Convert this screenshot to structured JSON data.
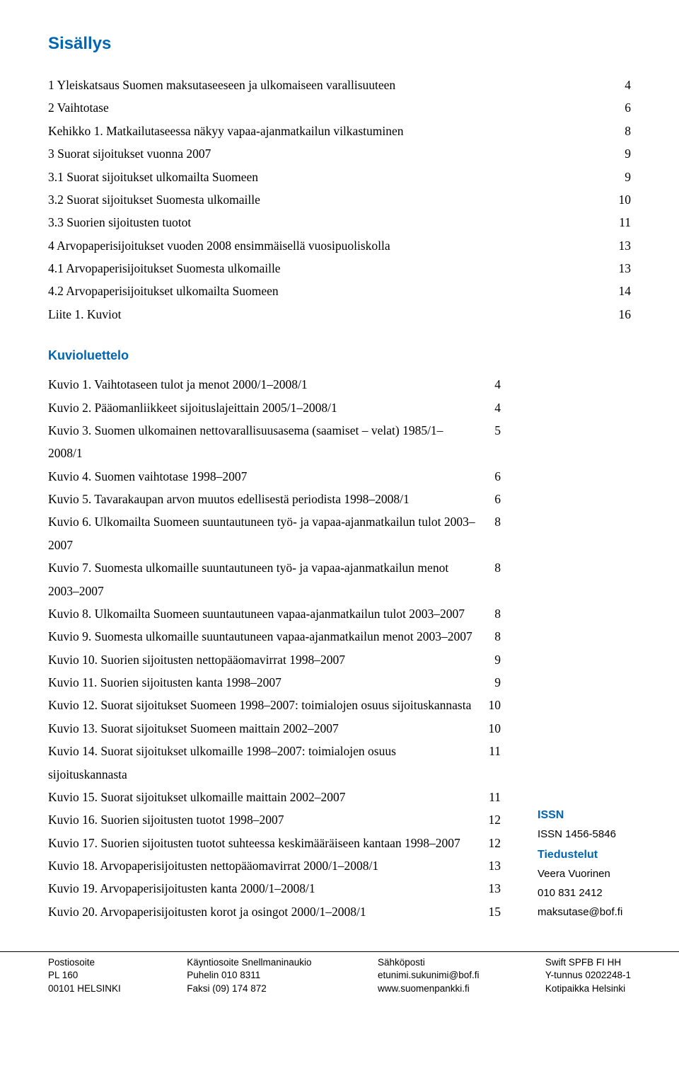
{
  "colors": {
    "heading": "#0066b3",
    "text": "#000000",
    "background": "#ffffff",
    "footer_border": "#000000"
  },
  "fonts": {
    "body_family": "Times New Roman",
    "heading_family": "Arial",
    "body_size_pt": 13,
    "heading_size_pt": 18,
    "subheading_size_pt": 14,
    "footer_size_pt": 10
  },
  "title": "Sisällys",
  "toc": [
    {
      "label": "1 Yleiskatsaus Suomen maksutaseeseen ja ulkomaiseen varallisuuteen",
      "page": "4",
      "indent": 1
    },
    {
      "label": "2 Vaihtotase",
      "page": "6",
      "indent": 1
    },
    {
      "label": "Kehikko 1. Matkailutaseessa näkyy vapaa-ajanmatkailun vilkastuminen",
      "page": "8",
      "indent": 1
    },
    {
      "label": "3 Suorat sijoitukset vuonna 2007",
      "page": "9",
      "indent": 1
    },
    {
      "label": "3.1 Suorat sijoitukset ulkomailta Suomeen",
      "page": "9",
      "indent": 2
    },
    {
      "label": "3.2 Suorat sijoitukset Suomesta ulkomaille",
      "page": "10",
      "indent": 2
    },
    {
      "label": "3.3 Suorien sijoitusten tuotot",
      "page": "11",
      "indent": 2
    },
    {
      "label": "4 Arvopaperisijoitukset vuoden 2008 ensimmäisellä vuosipuoliskolla",
      "page": "13",
      "indent": 1
    },
    {
      "label": "4.1 Arvopaperisijoitukset Suomesta ulkomaille",
      "page": "13",
      "indent": 2
    },
    {
      "label": "4.2 Arvopaperisijoitukset ulkomailta Suomeen",
      "page": "14",
      "indent": 2
    },
    {
      "label": "Liite 1. Kuviot",
      "page": "16",
      "indent": 1
    }
  ],
  "kuvioluettelo_title": "Kuvioluettelo",
  "kuviot": [
    {
      "label": "Kuvio 1. Vaihtotaseen tulot ja menot  2000/1–2008/1",
      "page": "4"
    },
    {
      "label": "Kuvio 2. Pääomanliikkeet sijoituslajeittain 2005/1–2008/1",
      "page": "4"
    },
    {
      "label": "Kuvio 3. Suomen ulkomainen nettovarallisuusasema (saamiset – velat) 1985/1–2008/1",
      "page": "5"
    },
    {
      "label": "Kuvio 4. Suomen vaihtotase 1998–2007",
      "page": "6"
    },
    {
      "label": "Kuvio 5. Tavarakaupan arvon muutos edellisestä periodista 1998–2008/1",
      "page": "6"
    },
    {
      "label": "Kuvio 6. Ulkomailta Suomeen suuntautuneen työ- ja vapaa-ajanmatkailun tulot 2003–2007",
      "page": "8"
    },
    {
      "label": "Kuvio 7. Suomesta ulkomaille suuntautuneen työ- ja vapaa-ajanmatkailun menot 2003–2007",
      "page": "8"
    },
    {
      "label": "Kuvio 8. Ulkomailta Suomeen suuntautuneen vapaa-ajanmatkailun tulot 2003–2007",
      "page": "8"
    },
    {
      "label": "Kuvio 9. Suomesta ulkomaille suuntautuneen vapaa-ajanmatkailun menot 2003–2007",
      "page": "8"
    },
    {
      "label": "Kuvio 10. Suorien sijoitusten nettopääomavirrat 1998–2007",
      "page": "9"
    },
    {
      "label": "Kuvio 11. Suorien sijoitusten kanta 1998–2007",
      "page": "9"
    },
    {
      "label": "Kuvio 12. Suorat sijoitukset Suomeen 1998–2007: toimialojen osuus sijoituskannasta",
      "page": "10"
    },
    {
      "label": "Kuvio 13. Suorat sijoitukset Suomeen maittain 2002–2007",
      "page": "10"
    },
    {
      "label": "Kuvio 14. Suorat sijoitukset ulkomaille 1998–2007: toimialojen osuus sijoituskannasta",
      "page": "11"
    },
    {
      "label": "Kuvio 15. Suorat sijoitukset ulkomaille maittain 2002–2007",
      "page": "11"
    },
    {
      "label": "Kuvio 16. Suorien sijoitusten tuotot 1998–2007",
      "page": "12"
    },
    {
      "label": "Kuvio 17. Suorien sijoitusten tuotot suhteessa  keskimääräiseen kantaan 1998–2007",
      "page": "12"
    },
    {
      "label": "Kuvio 18. Arvopaperisijoitusten nettopääomavirrat 2000/1–2008/1",
      "page": "13"
    },
    {
      "label": "Kuvio 19. Arvopaperisijoitusten kanta  2000/1–2008/1",
      "page": "13"
    },
    {
      "label": "Kuvio 20. Arvopaperisijoitusten korot ja osingot  2000/1–2008/1",
      "page": "15"
    }
  ],
  "sidebar": {
    "issn_heading": "ISSN",
    "issn_value": "ISSN 1456-5846",
    "tiedustelut_heading": "Tiedustelut",
    "contact_name": "Veera Vuorinen",
    "contact_phone": "010 831 2412",
    "contact_email": "maksutase@bof.fi"
  },
  "footer": {
    "col1": [
      "Postiosoite",
      "PL 160",
      "00101 HELSINKI"
    ],
    "col2": [
      "Käyntiosoite Snellmaninaukio",
      "Puhelin 010 8311",
      "Faksi (09) 174 872"
    ],
    "col3": [
      "Sähköposti",
      "etunimi.sukunimi@bof.fi",
      "www.suomenpankki.fi"
    ],
    "col4": [
      "Swift SPFB FI HH",
      "Y-tunnus 0202248-1",
      "Kotipaikka Helsinki"
    ]
  }
}
